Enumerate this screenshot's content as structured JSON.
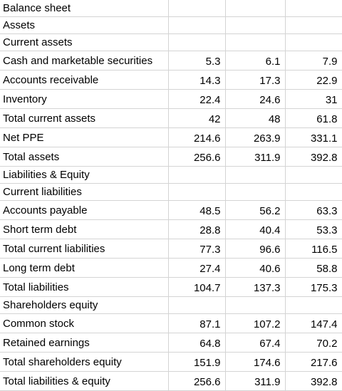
{
  "rows": [
    {
      "label": "Balance sheet",
      "values": [
        "",
        "",
        ""
      ]
    },
    {
      "label": "Assets",
      "values": [
        "",
        "",
        ""
      ]
    },
    {
      "label": "Current assets",
      "values": [
        "",
        "",
        ""
      ]
    },
    {
      "label": "Cash and marketable securities",
      "values": [
        "5.3",
        "6.1",
        "7.9"
      ]
    },
    {
      "label": "Accounts receivable",
      "values": [
        "14.3",
        "17.3",
        "22.9"
      ]
    },
    {
      "label": "Inventory",
      "values": [
        "22.4",
        "24.6",
        "31"
      ]
    },
    {
      "label": "Total current assets",
      "values": [
        "42",
        "48",
        "61.8"
      ]
    },
    {
      "label": "Net PPE",
      "values": [
        "214.6",
        "263.9",
        "331.1"
      ]
    },
    {
      "label": "Total assets",
      "values": [
        "256.6",
        "311.9",
        "392.8"
      ]
    },
    {
      "label": "Liabilities & Equity",
      "values": [
        "",
        "",
        ""
      ]
    },
    {
      "label": "Current liabilities",
      "values": [
        "",
        "",
        ""
      ]
    },
    {
      "label": "Accounts payable",
      "values": [
        "48.5",
        "56.2",
        "63.3"
      ]
    },
    {
      "label": "Short term debt",
      "values": [
        "28.8",
        "40.4",
        "53.3"
      ]
    },
    {
      "label": "Total current liabilities",
      "values": [
        "77.3",
        "96.6",
        "116.5"
      ]
    },
    {
      "label": "Long term debt",
      "values": [
        "27.4",
        "40.6",
        "58.8"
      ]
    },
    {
      "label": "Total liabilities",
      "values": [
        "104.7",
        "137.3",
        "175.3"
      ]
    },
    {
      "label": "Shareholders equity",
      "values": [
        "",
        "",
        ""
      ]
    },
    {
      "label": "Common stock",
      "values": [
        "87.1",
        "107.2",
        "147.4"
      ]
    },
    {
      "label": "Retained earnings",
      "values": [
        "64.8",
        "67.4",
        "70.2"
      ]
    },
    {
      "label": "Total shareholders equity",
      "values": [
        "151.9",
        "174.6",
        "217.6"
      ]
    },
    {
      "label": "Total liabilities & equity",
      "values": [
        "256.6",
        "311.9",
        "392.8"
      ]
    }
  ]
}
